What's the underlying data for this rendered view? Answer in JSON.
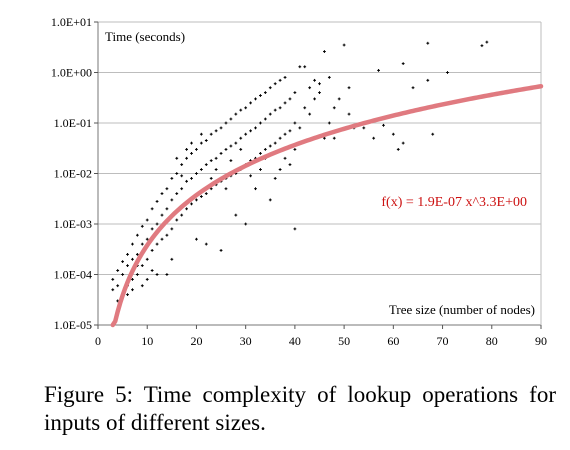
{
  "chart_data": {
    "type": "scatter",
    "title": "",
    "xlabel": "Tree size (number of nodes)",
    "ylabel": "Time (seconds)",
    "xlim": [
      0,
      90
    ],
    "ylim": [
      1e-05,
      10
    ],
    "yscale": "log",
    "x_ticks": [
      "0",
      "10",
      "20",
      "30",
      "40",
      "50",
      "60",
      "70",
      "80",
      "90"
    ],
    "y_ticks": [
      "1.0E-05",
      "1.0E-04",
      "1.0E-03",
      "1.0E-02",
      "1.0E-01",
      "1.0E+00",
      "1.0E+01"
    ],
    "grid": "horizontal",
    "series": [
      {
        "kind": "points",
        "color": "#000000",
        "points": [
          [
            3,
            5e-05
          ],
          [
            3,
            8e-05
          ],
          [
            4,
            3e-05
          ],
          [
            4,
            6e-05
          ],
          [
            4,
            0.00012
          ],
          [
            5,
            4e-05
          ],
          [
            5,
            0.0001
          ],
          [
            5,
            0.00018
          ],
          [
            6,
            6e-05
          ],
          [
            6,
            0.00015
          ],
          [
            6,
            0.00025
          ],
          [
            7,
            8e-05
          ],
          [
            7,
            0.0002
          ],
          [
            7,
            0.0004
          ],
          [
            8,
            0.0001
          ],
          [
            8,
            0.00025
          ],
          [
            8,
            0.0006
          ],
          [
            9,
            0.00015
          ],
          [
            9,
            0.0004
          ],
          [
            9,
            0.0009
          ],
          [
            10,
            0.0002
          ],
          [
            10,
            0.0005
          ],
          [
            10,
            0.0012
          ],
          [
            11,
            0.0003
          ],
          [
            11,
            0.0008
          ],
          [
            11,
            0.002
          ],
          [
            12,
            0.0004
          ],
          [
            12,
            0.001
          ],
          [
            12,
            0.0028
          ],
          [
            13,
            0.0005
          ],
          [
            13,
            0.0015
          ],
          [
            13,
            0.004
          ],
          [
            14,
            0.0006
          ],
          [
            14,
            0.002
          ],
          [
            14,
            0.005
          ],
          [
            15,
            0.0008
          ],
          [
            15,
            0.003
          ],
          [
            15,
            0.008
          ],
          [
            16,
            0.0012
          ],
          [
            16,
            0.004
          ],
          [
            16,
            0.01
          ],
          [
            17,
            0.0015
          ],
          [
            17,
            0.005
          ],
          [
            17,
            0.015
          ],
          [
            18,
            0.002
          ],
          [
            18,
            0.007
          ],
          [
            18,
            0.02
          ],
          [
            19,
            0.0025
          ],
          [
            19,
            0.008
          ],
          [
            19,
            0.025
          ],
          [
            20,
            0.003
          ],
          [
            20,
            0.01
          ],
          [
            20,
            0.03
          ],
          [
            21,
            0.0035
          ],
          [
            21,
            0.012
          ],
          [
            21,
            0.04
          ],
          [
            22,
            0.004
          ],
          [
            22,
            0.015
          ],
          [
            22,
            0.045
          ],
          [
            23,
            0.005
          ],
          [
            23,
            0.018
          ],
          [
            23,
            0.06
          ],
          [
            24,
            0.006
          ],
          [
            24,
            0.02
          ],
          [
            24,
            0.07
          ],
          [
            25,
            0.007
          ],
          [
            25,
            0.025
          ],
          [
            25,
            0.08
          ],
          [
            26,
            0.008
          ],
          [
            26,
            0.03
          ],
          [
            26,
            0.1
          ],
          [
            27,
            0.009
          ],
          [
            27,
            0.035
          ],
          [
            27,
            0.12
          ],
          [
            28,
            0.01
          ],
          [
            28,
            0.04
          ],
          [
            28,
            0.15
          ],
          [
            29,
            0.012
          ],
          [
            29,
            0.05
          ],
          [
            29,
            0.18
          ],
          [
            30,
            0.015
          ],
          [
            30,
            0.06
          ],
          [
            30,
            0.2
          ],
          [
            31,
            0.018
          ],
          [
            31,
            0.07
          ],
          [
            31,
            0.25
          ],
          [
            32,
            0.02
          ],
          [
            32,
            0.08
          ],
          [
            32,
            0.3
          ],
          [
            33,
            0.025
          ],
          [
            33,
            0.1
          ],
          [
            33,
            0.35
          ],
          [
            34,
            0.03
          ],
          [
            34,
            0.12
          ],
          [
            34,
            0.4
          ],
          [
            35,
            0.035
          ],
          [
            35,
            0.15
          ],
          [
            35,
            0.5
          ],
          [
            36,
            0.04
          ],
          [
            36,
            0.18
          ],
          [
            36,
            0.6
          ],
          [
            37,
            0.05
          ],
          [
            37,
            0.2
          ],
          [
            37,
            0.7
          ],
          [
            38,
            0.06
          ],
          [
            38,
            0.25
          ],
          [
            38,
            0.8
          ],
          [
            39,
            0.07
          ],
          [
            39,
            0.3
          ],
          [
            40,
            0.1
          ],
          [
            40,
            0.4
          ],
          [
            41,
            1.3
          ],
          [
            42,
            1.3
          ],
          [
            43,
            0.5
          ],
          [
            44,
            0.7
          ],
          [
            45,
            0.6
          ],
          [
            46,
            2.6
          ],
          [
            47,
            0.8
          ],
          [
            48,
            0.05
          ],
          [
            50,
            3.5
          ],
          [
            51,
            0.5
          ],
          [
            54,
            0.08
          ],
          [
            56,
            0.05
          ],
          [
            57,
            1.1
          ],
          [
            58,
            0.09
          ],
          [
            60,
            0.06
          ],
          [
            61,
            0.03
          ],
          [
            62,
            0.04
          ],
          [
            62,
            1.5
          ],
          [
            64,
            0.5
          ],
          [
            67,
            0.7
          ],
          [
            67,
            3.8
          ],
          [
            68,
            0.06
          ],
          [
            71,
            1.0
          ],
          [
            78,
            3.4
          ],
          [
            79,
            4.0
          ],
          [
            20,
            0.0005
          ],
          [
            25,
            0.0003
          ],
          [
            30,
            0.001
          ],
          [
            35,
            0.003
          ],
          [
            40,
            0.0008
          ],
          [
            15,
            0.0002
          ],
          [
            22,
            0.0004
          ],
          [
            28,
            0.0015
          ],
          [
            10,
            8e-05
          ],
          [
            12,
            0.0001
          ],
          [
            14,
            0.0001
          ],
          [
            7,
            5e-05
          ],
          [
            9,
            6e-05
          ],
          [
            11,
            0.00012
          ],
          [
            6,
            4e-05
          ],
          [
            8,
            0.00015
          ],
          [
            18,
            0.03
          ],
          [
            19,
            0.04
          ],
          [
            21,
            0.06
          ],
          [
            16,
            0.02
          ],
          [
            17,
            0.009
          ],
          [
            23,
            0.008
          ],
          [
            24,
            0.012
          ],
          [
            26,
            0.005
          ],
          [
            27,
            0.018
          ],
          [
            29,
            0.03
          ],
          [
            31,
            0.009
          ],
          [
            32,
            0.005
          ],
          [
            33,
            0.012
          ],
          [
            34,
            0.02
          ],
          [
            36,
            0.008
          ],
          [
            37,
            0.012
          ],
          [
            38,
            0.02
          ],
          [
            39,
            0.015
          ],
          [
            40,
            0.03
          ],
          [
            41,
            0.08
          ],
          [
            42,
            0.2
          ],
          [
            43,
            0.15
          ],
          [
            44,
            0.3
          ],
          [
            45,
            0.4
          ],
          [
            46,
            0.05
          ],
          [
            47,
            0.1
          ],
          [
            48,
            0.2
          ],
          [
            49,
            0.3
          ],
          [
            51,
            0.15
          ],
          [
            52,
            0.08
          ]
        ]
      },
      {
        "kind": "fit",
        "name": "f(x) = 1.9E-07 x^3.3E+00",
        "color": "#e07a80",
        "label_color": "#cc1111",
        "coefficient": 1.9e-07,
        "exponent": 3.3,
        "x_start": 3,
        "x_end": 90
      }
    ]
  },
  "caption": "Figure 5: Time complexity of lookup operations for inputs of different sizes."
}
